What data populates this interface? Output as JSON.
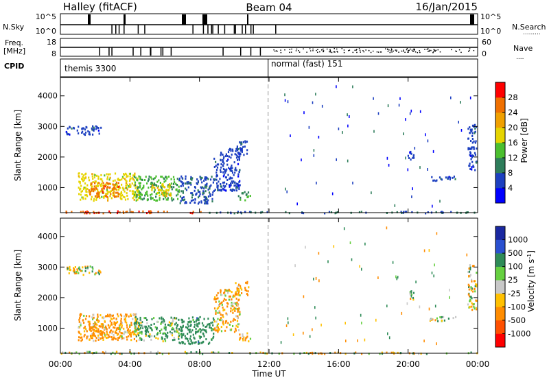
{
  "header": {
    "title": "Halley (fitACF)",
    "beam": "Beam 04",
    "date": "16/Jan/2015"
  },
  "aux_panels": {
    "nsky_label": "N.Sky",
    "nsky_ticks": [
      "10^5",
      "10^0"
    ],
    "nsearch_label": "N.Search",
    "nsearch_ticks": [
      "10^5",
      "10^0"
    ],
    "freq_label_1": "Freq.",
    "freq_label_2": "[MHz]",
    "freq_ticks": [
      "18",
      "8"
    ],
    "nave_label": "Nave",
    "nave_ticks": [
      "60",
      "0"
    ],
    "cpid_label": "CPID",
    "cpid_segments": [
      {
        "name": "themis 3300",
        "start_hour": 0,
        "end_hour": 11.95
      },
      {
        "name": "normal (fast) 151",
        "start_hour": 11.95,
        "end_hour": 24
      }
    ]
  },
  "axes": {
    "x_label": "Time UT",
    "x_ticks": [
      "00:00",
      "04:00",
      "08:00",
      "12:00",
      "16:00",
      "20:00",
      "00:00"
    ],
    "y_label": "Slant Range [km]",
    "y_ticks": [
      "1000",
      "2000",
      "3000",
      "4000"
    ]
  },
  "power_bar": {
    "label": "Power [dB]",
    "ticks": [
      "4",
      "8",
      "12",
      "16",
      "20",
      "24",
      "28"
    ]
  },
  "velocity_bar": {
    "label": "Velocity [m s",
    "label_sup": "-1",
    "label_end": "]",
    "ticks": [
      "1000",
      "500",
      "100",
      "25",
      "-25",
      "-100",
      "-500",
      "-1000"
    ]
  },
  "chart_data": [
    {
      "type": "heatmap",
      "name": "Power",
      "x_unit": "hour UT",
      "y_unit": "km",
      "xlim": [
        0,
        24
      ],
      "ylim": [
        180,
        4600
      ],
      "color_scale": {
        "bins": [
          0,
          4,
          8,
          12,
          16,
          20,
          24,
          28,
          32
        ],
        "colors": [
          "#0000ff",
          "#1d40c0",
          "#2e7d5b",
          "#4bbf2f",
          "#e6d400",
          "#f0a000",
          "#f07000",
          "#ff0000"
        ]
      },
      "regions": [
        {
          "x": [
            1.0,
            4.5
          ],
          "y": [
            600,
            1500
          ],
          "value": 18
        },
        {
          "x": [
            1.6,
            3.4
          ],
          "y": [
            700,
            1200
          ],
          "value": 26
        },
        {
          "x": [
            4.2,
            6.8
          ],
          "y": [
            600,
            1400
          ],
          "value": 13
        },
        {
          "x": [
            5.2,
            6.4
          ],
          "y": [
            750,
            1150
          ],
          "value": 19
        },
        {
          "x": [
            6.8,
            8.8
          ],
          "y": [
            500,
            1400
          ],
          "value": 7
        },
        {
          "x": [
            8.8,
            10.3
          ],
          "y": [
            900,
            2300
          ],
          "value": 6
        },
        {
          "x": [
            10.0,
            10.8
          ],
          "y": [
            2100,
            2550
          ],
          "value": 6
        },
        {
          "x": [
            10.2,
            10.9
          ],
          "y": [
            600,
            900
          ],
          "value": 12
        },
        {
          "x": [
            0.3,
            2.3
          ],
          "y": [
            2750,
            3050
          ],
          "value": 6
        },
        {
          "x": [
            0.0,
            8.5
          ],
          "y": [
            190,
            260
          ],
          "value": 27
        },
        {
          "x": [
            8.5,
            24
          ],
          "y": [
            190,
            240
          ],
          "value": 8
        },
        {
          "x": [
            19.9,
            20.3
          ],
          "y": [
            1950,
            2250
          ],
          "value": 6
        },
        {
          "x": [
            21.2,
            22.8
          ],
          "y": [
            1250,
            1400
          ],
          "value": 6
        },
        {
          "x": [
            23.4,
            23.9
          ],
          "y": [
            1600,
            3100
          ],
          "value": 6
        }
      ]
    },
    {
      "type": "heatmap",
      "name": "Velocity",
      "x_unit": "hour UT",
      "y_unit": "km",
      "xlim": [
        0,
        24
      ],
      "ylim": [
        180,
        4600
      ],
      "color_scale": {
        "bins": [
          -1500,
          -1000,
          -500,
          -100,
          -25,
          25,
          100,
          500,
          1000,
          1500
        ],
        "colors": [
          "#ff0000",
          "#ff5000",
          "#ff8c00",
          "#ffc000",
          "#c8c8c8",
          "#66d040",
          "#2e8b57",
          "#2a50d0",
          "#1a28a0"
        ]
      },
      "regions": [
        {
          "x": [
            1.0,
            4.5
          ],
          "y": [
            600,
            1500
          ],
          "value": -150
        },
        {
          "x": [
            1.6,
            3.4
          ],
          "y": [
            700,
            1200
          ],
          "value": -250
        },
        {
          "x": [
            4.2,
            6.8
          ],
          "y": [
            600,
            1400
          ],
          "value": 150
        },
        {
          "x": [
            6.8,
            8.8
          ],
          "y": [
            500,
            1400
          ],
          "value": 300
        },
        {
          "x": [
            8.8,
            10.3
          ],
          "y": [
            900,
            2300
          ],
          "value": -120
        },
        {
          "x": [
            10.0,
            10.8
          ],
          "y": [
            2100,
            2550
          ],
          "value": -200
        },
        {
          "x": [
            10.2,
            10.9
          ],
          "y": [
            600,
            900
          ],
          "value": -150
        },
        {
          "x": [
            0.3,
            2.3
          ],
          "y": [
            2750,
            3050
          ],
          "value": 0
        },
        {
          "x": [
            0.0,
            8.5
          ],
          "y": [
            190,
            260
          ],
          "value": 0
        },
        {
          "x": [
            8.5,
            24
          ],
          "y": [
            190,
            240
          ],
          "value": 0
        },
        {
          "x": [
            19.9,
            20.3
          ],
          "y": [
            1950,
            2250
          ],
          "value": 60
        },
        {
          "x": [
            21.2,
            22.8
          ],
          "y": [
            1250,
            1400
          ],
          "value": 0
        },
        {
          "x": [
            23.4,
            23.9
          ],
          "y": [
            1600,
            3100
          ],
          "value": 0
        }
      ]
    }
  ]
}
